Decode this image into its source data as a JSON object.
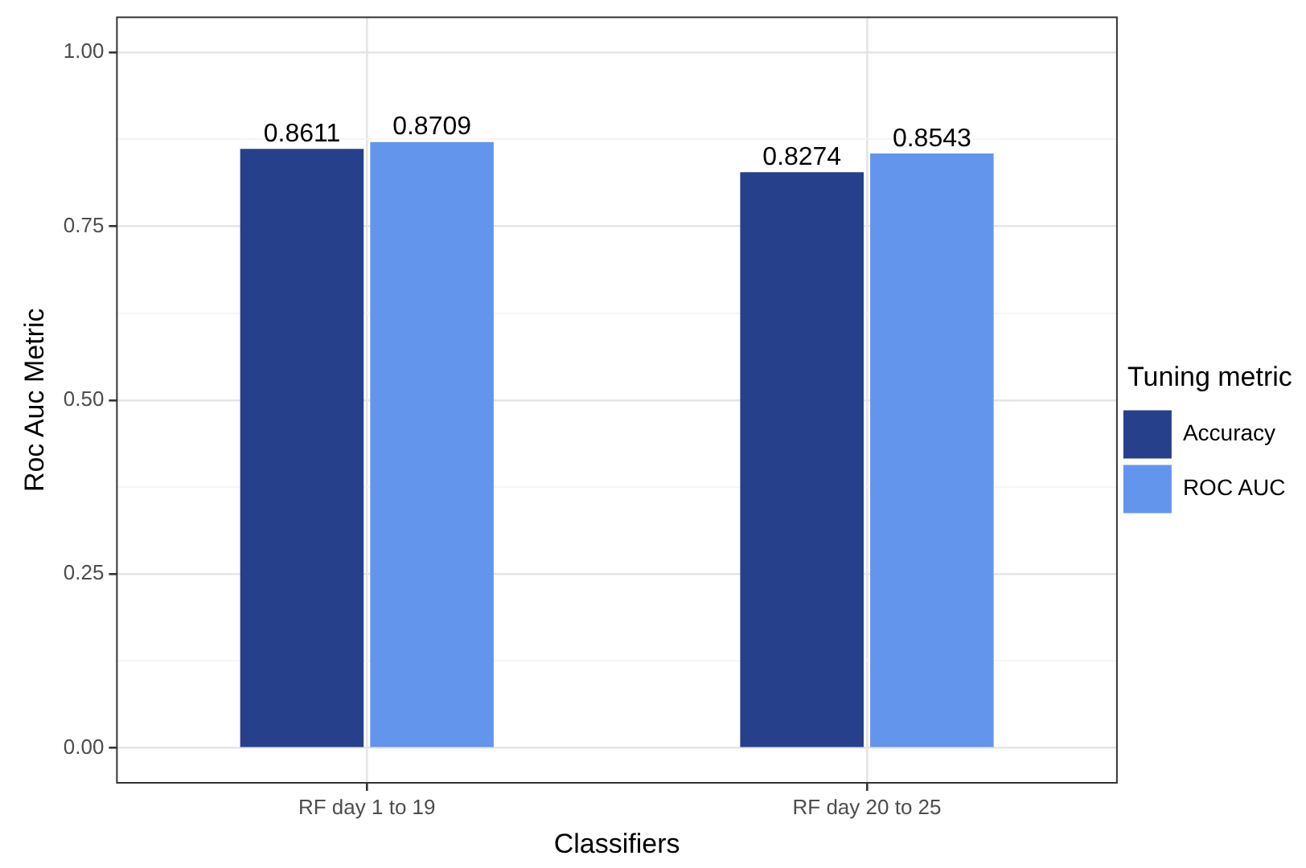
{
  "chart_data": {
    "type": "bar",
    "xlabel": "Classifiers",
    "ylabel": "Roc Auc Metric",
    "legend_title": "Tuning metric",
    "categories": [
      "RF day 1 to 19",
      "RF day 20 to 25"
    ],
    "series": [
      {
        "name": "Accuracy",
        "color": "#27408b",
        "values": [
          0.8611,
          0.8274
        ]
      },
      {
        "name": "ROC AUC",
        "color": "#6495ed",
        "values": [
          0.8709,
          0.8543
        ]
      }
    ],
    "ylim": [
      -0.05,
      1.05
    ],
    "yticks": [
      {
        "value": 0,
        "label": "0.00"
      },
      {
        "value": 0.125,
        "label": null
      },
      {
        "value": 0.25,
        "label": "0.25"
      },
      {
        "value": 0.375,
        "label": null
      },
      {
        "value": 0.5,
        "label": "0.50"
      },
      {
        "value": 0.625,
        "label": null
      },
      {
        "value": 0.75,
        "label": "0.75"
      },
      {
        "value": 0.875,
        "label": null
      },
      {
        "value": 1,
        "label": "1.00"
      }
    ],
    "grid": true,
    "legend": "right",
    "data_labels": true
  }
}
